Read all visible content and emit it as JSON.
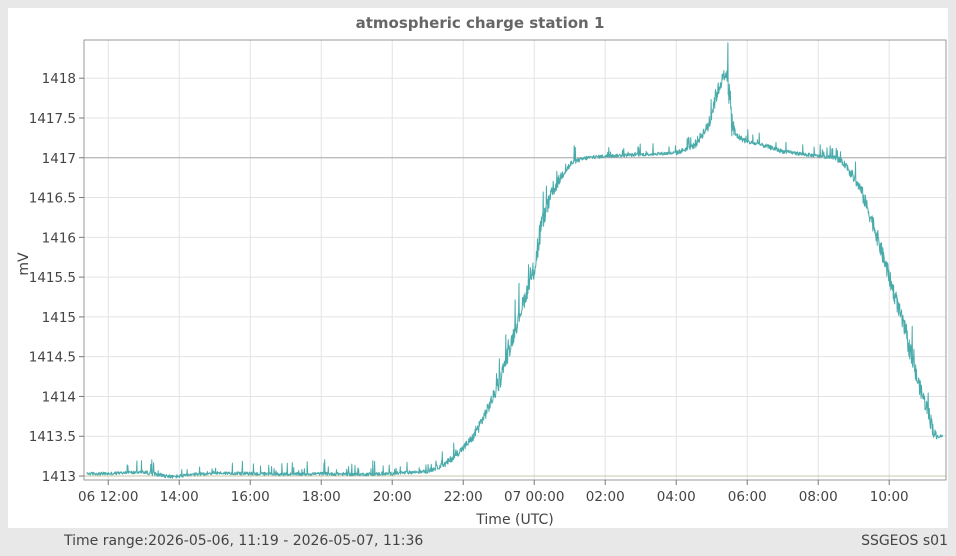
{
  "chart_data": {
    "type": "line",
    "title": "atmospheric charge station 1",
    "xlabel": "Time (UTC)",
    "ylabel": "mV",
    "x_ticks": [
      "06 12:00",
      "14:00",
      "16:00",
      "18:00",
      "20:00",
      "22:00",
      "07 00:00",
      "02:00",
      "04:00",
      "06:00",
      "08:00",
      "10:00"
    ],
    "x_ticks_hours": [
      12,
      14,
      16,
      18,
      20,
      22,
      24,
      26,
      28,
      30,
      32,
      34
    ],
    "xlim_hours": [
      11.317,
      35.6
    ],
    "y_ticks": [
      "1413",
      "1413.5",
      "1414",
      "1414.5",
      "1415",
      "1415.5",
      "1416",
      "1416.5",
      "1417",
      "1417.5",
      "1418"
    ],
    "ylim": [
      1412.95,
      1418.48
    ],
    "grid": true,
    "reference_lines": [
      {
        "y": 1417,
        "color": "#aaaaaa"
      },
      {
        "y": 1413,
        "color": "#c8c8a8"
      }
    ],
    "series": [
      {
        "color": "#4aabab",
        "x_hours": [
          11.4,
          12,
          13,
          13.8,
          14.5,
          15,
          16,
          17,
          18,
          19,
          20,
          21,
          21.5,
          22,
          22.3,
          22.7,
          23,
          23.3,
          23.6,
          24,
          24.2,
          24.5,
          24.8,
          25.1,
          25.5,
          26,
          26.5,
          27,
          27.5,
          28,
          28.5,
          28.9,
          29.1,
          29.3,
          29.45,
          29.55,
          29.65,
          29.8,
          30,
          30.5,
          31,
          31.5,
          32,
          32.5,
          32.8,
          33.2,
          33.6,
          34,
          34.4,
          34.8,
          35.1,
          35.3,
          35.5
        ],
        "y": [
          1413.03,
          1413.03,
          1413.05,
          1412.99,
          1413.02,
          1413.04,
          1413.03,
          1413.02,
          1413.03,
          1413.02,
          1413.03,
          1413.06,
          1413.15,
          1413.35,
          1413.5,
          1413.85,
          1414.15,
          1414.6,
          1415.05,
          1415.6,
          1416.15,
          1416.55,
          1416.8,
          1416.95,
          1417,
          1417.02,
          1417.03,
          1417.04,
          1417.05,
          1417.06,
          1417.15,
          1417.4,
          1417.75,
          1418.0,
          1418.05,
          1417.5,
          1417.3,
          1417.25,
          1417.2,
          1417.15,
          1417.08,
          1417.05,
          1417.02,
          1417.0,
          1416.9,
          1416.6,
          1416.1,
          1415.5,
          1414.9,
          1414.2,
          1413.8,
          1413.5,
          1413.5
        ]
      }
    ]
  },
  "footer": {
    "time_range": "Time range:2026-05-06, 11:19 - 2026-05-07, 11:36",
    "station": "SSGEOS s01"
  }
}
